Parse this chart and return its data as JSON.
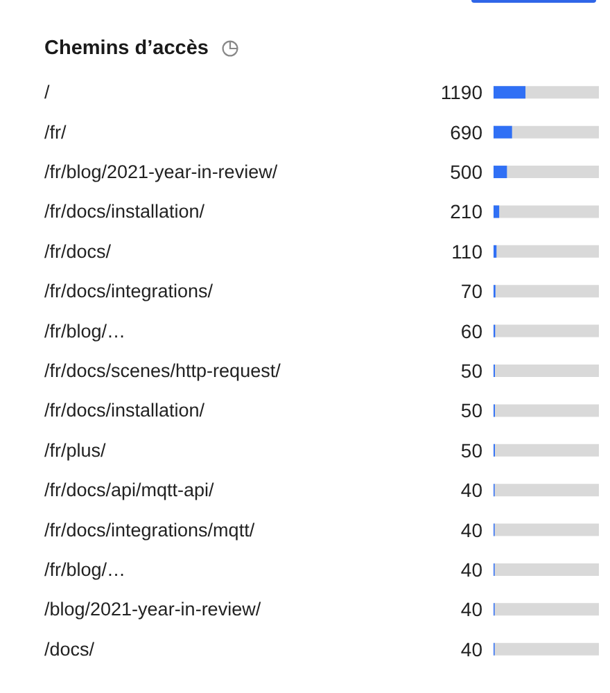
{
  "chart_data": {
    "type": "bar",
    "title": "Chemins d’accès",
    "orientation": "horizontal",
    "categories": [
      "/",
      "/fr/",
      "/fr/blog/2021-year-in-review/",
      "/fr/docs/installation/",
      "/fr/docs/",
      "/fr/docs/integrations/",
      "/fr/blog/…",
      "/fr/docs/scenes/http-request/",
      "/fr/docs/installation/",
      "/fr/plus/",
      "/fr/docs/api/mqtt-api/",
      "/fr/docs/integrations/mqtt/",
      "/fr/blog/…",
      "/blog/2021-year-in-review/",
      "/docs/"
    ],
    "values": [
      1190,
      690,
      500,
      210,
      110,
      70,
      60,
      50,
      50,
      50,
      40,
      40,
      40,
      40,
      40
    ],
    "color": "#3070f5",
    "xlim": [
      0,
      3930
    ],
    "data_labels": true,
    "tick_labels": "y"
  }
}
